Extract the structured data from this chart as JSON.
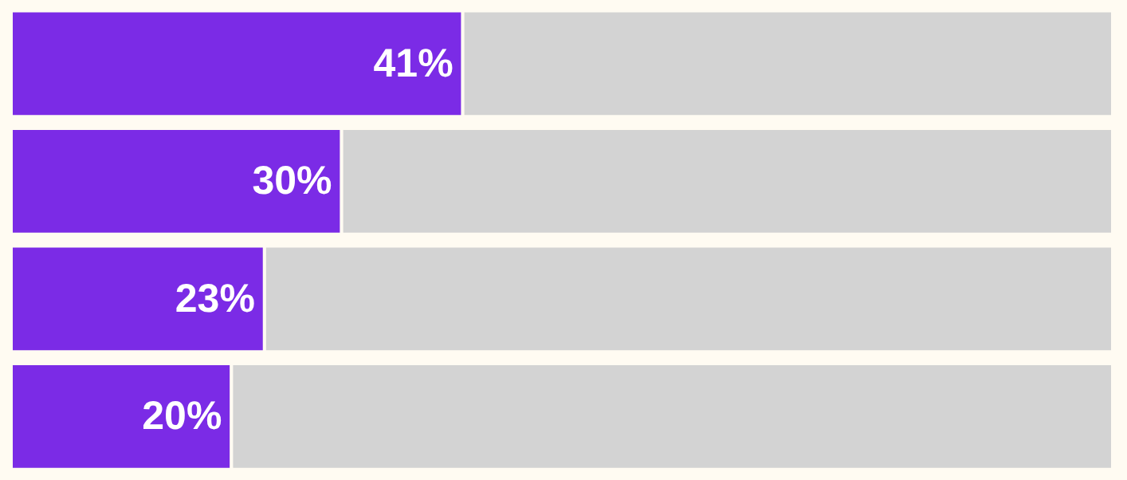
{
  "chart_data": {
    "type": "bar",
    "orientation": "horizontal",
    "stacked": true,
    "categories": [
      null,
      null,
      null,
      null
    ],
    "series": [
      {
        "color": "#7b2be6",
        "values": [
          41,
          30,
          23,
          20
        ],
        "value_labels": [
          "41%",
          "30%",
          "23%",
          "20%"
        ]
      },
      {
        "color": "#d3d3d3",
        "values": [
          59,
          70,
          77,
          80
        ]
      }
    ],
    "xlim": [
      0,
      100
    ],
    "tick_labels": false
  }
}
